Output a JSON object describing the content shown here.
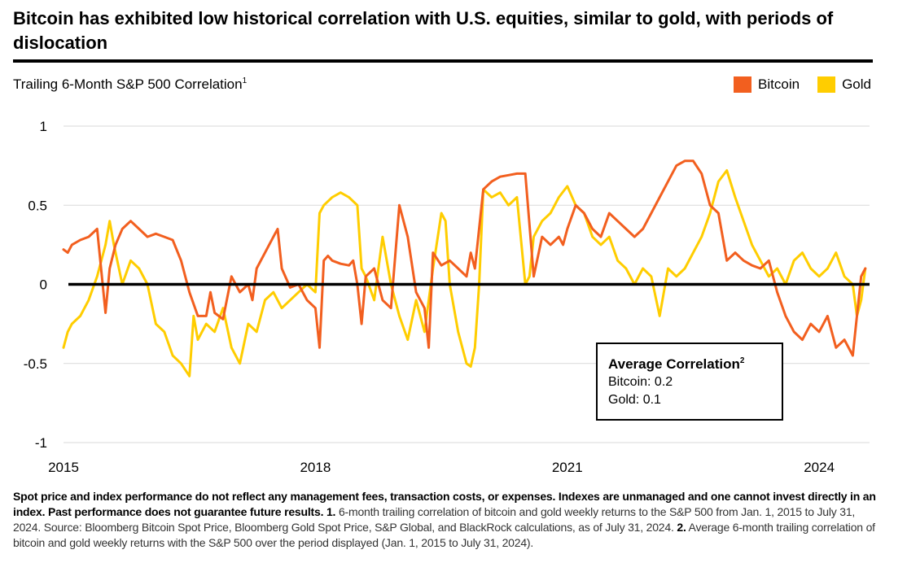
{
  "title": "Bitcoin has exhibited low historical correlation with U.S. equities, similar to gold, with periods of dislocation",
  "subtitle": "Trailing 6-Month S&P 500 Correlation",
  "subtitle_note": "1",
  "legend": {
    "bitcoin": "Bitcoin",
    "gold": "Gold"
  },
  "colors": {
    "bitcoin": "#f25f1f",
    "gold": "#ffcd00",
    "zero_line": "#000000",
    "grid": "#d9d9d9",
    "text": "#000000"
  },
  "avg_box": {
    "title": "Average Correlation",
    "note": "2",
    "bitcoin": "Bitcoin: 0.2",
    "gold": "Gold: 0.1"
  },
  "footnote": {
    "bold": "Spot price and index performance do not reflect any management fees, transaction costs, or expenses. Indexes are unmanaged and one cannot invest directly in an index. Past performance does not guarantee future results. 1.",
    "text1": " 6-month trailing correlation of bitcoin and gold weekly returns to the S&P 500 from Jan. 1, 2015 to July 31, 2024. Source: Bloomberg Bitcoin Spot Price, Bloomberg Gold Spot Price, S&P Global, and BlackRock calculations, as of July 31, 2024.",
    "num2": " 2.",
    "text2": " Average 6-month trailing correlation of bitcoin and gold weekly returns with the S&P 500 over the period displayed (Jan. 1, 2015 to July 31, 2024)."
  },
  "chart_data": {
    "type": "line",
    "title": "Bitcoin has exhibited low historical correlation with U.S. equities, similar to gold, with periods of dislocation",
    "ylabel": "Trailing 6-Month S&P 500 Correlation",
    "xlabel": "",
    "xlim": [
      2015.0,
      2024.6
    ],
    "ylim": [
      -1,
      1
    ],
    "yticks": [
      1,
      0.5,
      0,
      -0.5,
      -1
    ],
    "ytick_labels": [
      "1",
      "0.5",
      "0",
      "-0.5",
      "-1"
    ],
    "xticks": [
      2015,
      2018,
      2021,
      2024
    ],
    "xtick_labels": [
      "2015",
      "2018",
      "2021",
      "2024"
    ],
    "grid": true,
    "legend_position": "top-right",
    "series": [
      {
        "name": "Bitcoin",
        "x": [
          2015.0,
          2015.05,
          2015.1,
          2015.2,
          2015.3,
          2015.4,
          2015.5,
          2015.55,
          2015.62,
          2015.7,
          2015.8,
          2015.9,
          2016.0,
          2016.1,
          2016.2,
          2016.3,
          2016.4,
          2016.5,
          2016.6,
          2016.7,
          2016.75,
          2016.8,
          2016.9,
          2017.0,
          2017.1,
          2017.2,
          2017.25,
          2017.3,
          2017.4,
          2017.5,
          2017.55,
          2017.6,
          2017.7,
          2017.8,
          2017.9,
          2018.0,
          2018.05,
          2018.1,
          2018.15,
          2018.2,
          2018.3,
          2018.4,
          2018.45,
          2018.5,
          2018.55,
          2018.6,
          2018.7,
          2018.8,
          2018.9,
          2019.0,
          2019.1,
          2019.2,
          2019.3,
          2019.35,
          2019.4,
          2019.5,
          2019.6,
          2019.7,
          2019.8,
          2019.85,
          2019.9,
          2020.0,
          2020.1,
          2020.2,
          2020.3,
          2020.4,
          2020.5,
          2020.6,
          2020.7,
          2020.8,
          2020.9,
          2020.95,
          2021.0,
          2021.1,
          2021.2,
          2021.3,
          2021.4,
          2021.5,
          2021.6,
          2021.7,
          2021.8,
          2021.9,
          2022.0,
          2022.1,
          2022.2,
          2022.3,
          2022.4,
          2022.5,
          2022.6,
          2022.7,
          2022.8,
          2022.9,
          2023.0,
          2023.1,
          2023.2,
          2023.3,
          2023.4,
          2023.5,
          2023.6,
          2023.7,
          2023.8,
          2023.9,
          2024.0,
          2024.1,
          2024.2,
          2024.3,
          2024.4,
          2024.45,
          2024.5,
          2024.55
        ],
        "values": [
          0.22,
          0.2,
          0.25,
          0.28,
          0.3,
          0.35,
          -0.18,
          0.1,
          0.25,
          0.35,
          0.4,
          0.35,
          0.3,
          0.32,
          0.3,
          0.28,
          0.15,
          -0.05,
          -0.2,
          -0.2,
          -0.05,
          -0.18,
          -0.22,
          0.05,
          -0.05,
          0.0,
          -0.1,
          0.1,
          0.2,
          0.3,
          0.35,
          0.1,
          -0.02,
          0.0,
          -0.1,
          -0.15,
          -0.4,
          0.15,
          0.18,
          0.15,
          0.13,
          0.12,
          0.15,
          0.0,
          -0.25,
          0.05,
          0.1,
          -0.1,
          -0.15,
          0.5,
          0.3,
          -0.05,
          -0.15,
          -0.4,
          0.2,
          0.12,
          0.15,
          0.1,
          0.05,
          0.2,
          0.1,
          0.6,
          0.65,
          0.68,
          0.69,
          0.7,
          0.7,
          0.05,
          0.3,
          0.25,
          0.3,
          0.25,
          0.35,
          0.5,
          0.45,
          0.35,
          0.3,
          0.45,
          0.4,
          0.35,
          0.3,
          0.35,
          0.45,
          0.55,
          0.65,
          0.75,
          0.78,
          0.78,
          0.7,
          0.5,
          0.45,
          0.15,
          0.2,
          0.15,
          0.12,
          0.1,
          0.15,
          -0.05,
          -0.2,
          -0.3,
          -0.35,
          -0.25,
          -0.3,
          -0.2,
          -0.4,
          -0.35,
          -0.45,
          -0.2,
          0.05,
          0.1
        ]
      },
      {
        "name": "Gold",
        "x": [
          2015.0,
          2015.05,
          2015.1,
          2015.2,
          2015.3,
          2015.4,
          2015.5,
          2015.55,
          2015.6,
          2015.7,
          2015.8,
          2015.9,
          2016.0,
          2016.1,
          2016.2,
          2016.3,
          2016.4,
          2016.5,
          2016.55,
          2016.6,
          2016.7,
          2016.8,
          2016.9,
          2017.0,
          2017.1,
          2017.2,
          2017.3,
          2017.4,
          2017.5,
          2017.6,
          2017.7,
          2017.8,
          2017.9,
          2018.0,
          2018.05,
          2018.1,
          2018.2,
          2018.3,
          2018.4,
          2018.5,
          2018.55,
          2018.6,
          2018.7,
          2018.8,
          2018.9,
          2019.0,
          2019.1,
          2019.2,
          2019.3,
          2019.4,
          2019.5,
          2019.55,
          2019.6,
          2019.7,
          2019.8,
          2019.85,
          2019.9,
          2019.95,
          2020.0,
          2020.1,
          2020.2,
          2020.3,
          2020.4,
          2020.5,
          2020.55,
          2020.6,
          2020.7,
          2020.8,
          2020.9,
          2021.0,
          2021.1,
          2021.2,
          2021.3,
          2021.4,
          2021.5,
          2021.6,
          2021.7,
          2021.8,
          2021.9,
          2022.0,
          2022.1,
          2022.2,
          2022.3,
          2022.4,
          2022.5,
          2022.6,
          2022.7,
          2022.8,
          2022.9,
          2023.0,
          2023.1,
          2023.2,
          2023.3,
          2023.4,
          2023.5,
          2023.6,
          2023.7,
          2023.8,
          2023.9,
          2024.0,
          2024.1,
          2024.2,
          2024.3,
          2024.4,
          2024.45,
          2024.5,
          2024.55
        ],
        "values": [
          -0.4,
          -0.3,
          -0.25,
          -0.2,
          -0.1,
          0.05,
          0.25,
          0.4,
          0.25,
          0.0,
          0.15,
          0.1,
          0.0,
          -0.25,
          -0.3,
          -0.45,
          -0.5,
          -0.58,
          -0.2,
          -0.35,
          -0.25,
          -0.3,
          -0.15,
          -0.4,
          -0.5,
          -0.25,
          -0.3,
          -0.1,
          -0.05,
          -0.15,
          -0.1,
          -0.05,
          0.0,
          -0.05,
          0.45,
          0.5,
          0.55,
          0.58,
          0.55,
          0.5,
          0.1,
          0.05,
          -0.1,
          0.3,
          0.0,
          -0.2,
          -0.35,
          -0.1,
          -0.3,
          0.1,
          0.45,
          0.4,
          0.0,
          -0.3,
          -0.5,
          -0.52,
          -0.4,
          0.0,
          0.6,
          0.55,
          0.58,
          0.5,
          0.55,
          0.0,
          0.05,
          0.3,
          0.4,
          0.45,
          0.55,
          0.62,
          0.5,
          0.45,
          0.3,
          0.25,
          0.3,
          0.15,
          0.1,
          0.0,
          0.1,
          0.05,
          -0.2,
          0.1,
          0.05,
          0.1,
          0.2,
          0.3,
          0.45,
          0.65,
          0.72,
          0.55,
          0.4,
          0.25,
          0.15,
          0.05,
          0.1,
          0.0,
          0.15,
          0.2,
          0.1,
          0.05,
          0.1,
          0.2,
          0.05,
          0.0,
          -0.2,
          -0.1,
          0.1
        ]
      }
    ]
  }
}
